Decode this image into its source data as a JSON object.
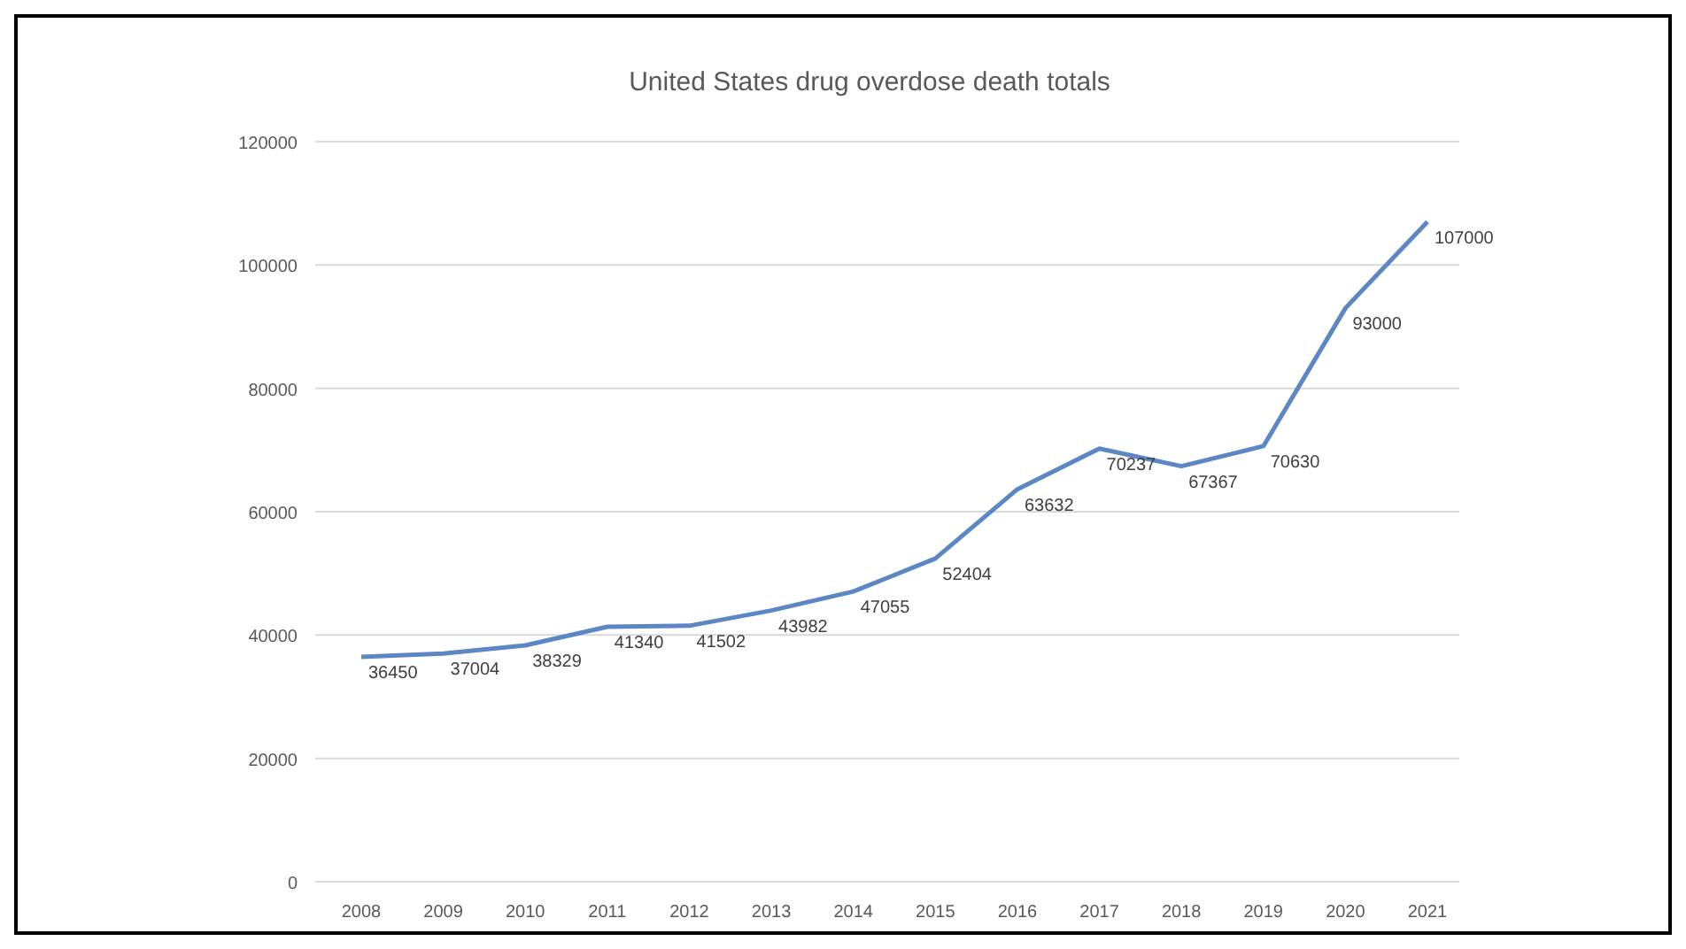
{
  "chart_data": {
    "type": "line",
    "title": "United States drug overdose death totals",
    "categories": [
      "2008",
      "2009",
      "2010",
      "2011",
      "2012",
      "2013",
      "2014",
      "2015",
      "2016",
      "2017",
      "2018",
      "2019",
      "2020",
      "2021"
    ],
    "series": [
      {
        "color": "#5b87c5",
        "values": [
          36450,
          37004,
          38329,
          41340,
          41502,
          43982,
          47055,
          52404,
          63632,
          70237,
          67367,
          70630,
          93000,
          107000
        ]
      }
    ],
    "ylim": [
      0,
      120000
    ],
    "yticks": [
      0,
      20000,
      40000,
      60000,
      80000,
      100000,
      120000
    ],
    "grid": "y",
    "data_labels": true,
    "marker": "none",
    "line_style": "solid"
  }
}
